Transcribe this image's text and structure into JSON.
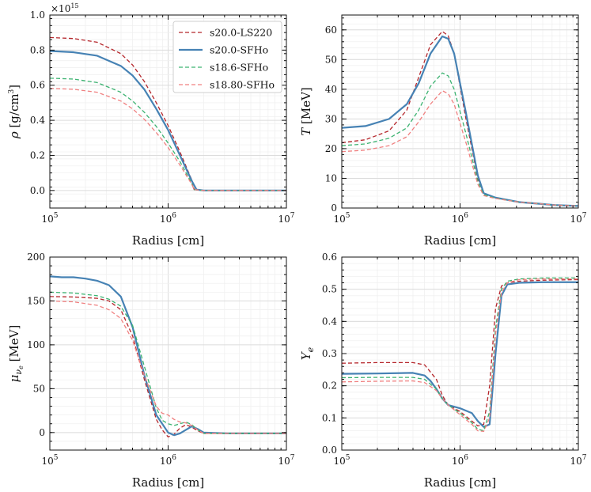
{
  "colors": {
    "s20_LS220": "#b5262b",
    "s20_SFHo": "#4682b4",
    "s18_6_SFHo": "#3cb371",
    "s18_80_SFHo": "#f08080"
  },
  "legend": {
    "position": "top-right",
    "panel": 0
  },
  "chart_data": [
    {
      "type": "line",
      "xlabel": "Radius [cm]",
      "ylabel": "ρ [g/cm³]",
      "ylabel_parts": {
        "symbol": "ρ",
        "unit": "[g/cm",
        "exp": "3",
        "close": "]"
      },
      "xscale": "log",
      "xlim": [
        100000,
        10000000
      ],
      "xticks": [
        "10^5",
        "10^6",
        "10^7"
      ],
      "ylim": [
        -0.1,
        1.0
      ],
      "yticks": [
        0.0,
        0.2,
        0.4,
        0.6,
        0.8,
        1.0
      ],
      "y_multiplier": "×10^15",
      "grid": true,
      "series": [
        {
          "name": "s20.0-LS220",
          "style": "dashed",
          "key": "s20_LS220",
          "x": [
            5,
            5.2,
            5.4,
            5.6,
            5.7,
            5.8,
            5.9,
            6.0,
            6.1,
            6.2,
            6.22,
            6.3,
            6.5,
            7
          ],
          "y": [
            0.872,
            0.866,
            0.845,
            0.78,
            0.715,
            0.62,
            0.5,
            0.37,
            0.22,
            0.06,
            0.005,
            0.0,
            0.0,
            0.0
          ]
        },
        {
          "name": "s20.0-SFHo",
          "style": "solid",
          "key": "s20_SFHo",
          "x": [
            5,
            5.2,
            5.4,
            5.6,
            5.7,
            5.8,
            5.9,
            6.0,
            6.1,
            6.2,
            6.24,
            6.3,
            6.5,
            7
          ],
          "y": [
            0.795,
            0.788,
            0.768,
            0.71,
            0.655,
            0.575,
            0.465,
            0.345,
            0.2,
            0.055,
            0.005,
            0.0,
            0.0,
            0.0
          ]
        },
        {
          "name": "s18.6-SFHo",
          "style": "dashed",
          "key": "s18_6_SFHo",
          "x": [
            5,
            5.2,
            5.4,
            5.6,
            5.7,
            5.8,
            5.9,
            6.0,
            6.1,
            6.2,
            6.22,
            6.3,
            6.5,
            7
          ],
          "y": [
            0.64,
            0.635,
            0.615,
            0.56,
            0.51,
            0.445,
            0.365,
            0.27,
            0.165,
            0.04,
            0.005,
            0.0,
            0.0,
            0.0
          ]
        },
        {
          "name": "s18.80-SFHo",
          "style": "dashed",
          "key": "s18_80_SFHo",
          "x": [
            5,
            5.2,
            5.4,
            5.6,
            5.7,
            5.8,
            5.9,
            6.0,
            6.1,
            6.2,
            6.22,
            6.3,
            6.5,
            7
          ],
          "y": [
            0.582,
            0.577,
            0.56,
            0.51,
            0.465,
            0.405,
            0.33,
            0.245,
            0.145,
            0.035,
            0.005,
            0.0,
            0.0,
            0.0
          ]
        }
      ]
    },
    {
      "type": "line",
      "xlabel": "Radius [cm]",
      "ylabel": "T [MeV]",
      "ylabel_parts": {
        "symbol": "T",
        "unit": "[MeV]"
      },
      "xscale": "log",
      "xlim": [
        100000,
        10000000
      ],
      "xticks": [
        "10^5",
        "10^6",
        "10^7"
      ],
      "ylim": [
        0,
        65
      ],
      "yticks": [
        0,
        10,
        20,
        30,
        40,
        50,
        60
      ],
      "grid": true,
      "series": [
        {
          "name": "s20.0-LS220",
          "style": "dashed",
          "key": "s20_LS220",
          "x": [
            5,
            5.2,
            5.4,
            5.55,
            5.65,
            5.75,
            5.85,
            5.9,
            5.95,
            6.05,
            6.15,
            6.2,
            6.3,
            6.5,
            6.8,
            7
          ],
          "y": [
            22,
            23,
            26,
            33,
            44,
            55,
            59.5,
            58,
            52,
            30,
            10,
            5,
            3.5,
            2,
            1,
            0.7
          ]
        },
        {
          "name": "s20.0-SFHo",
          "style": "solid",
          "key": "s20_SFHo",
          "x": [
            5,
            5.2,
            5.4,
            5.55,
            5.65,
            5.75,
            5.85,
            5.9,
            5.95,
            6.05,
            6.15,
            6.2,
            6.3,
            6.5,
            6.8,
            7
          ],
          "y": [
            27,
            27.6,
            30,
            35,
            42,
            52,
            57.8,
            57,
            52,
            32,
            11,
            5,
            3.5,
            2,
            1,
            0.7
          ]
        },
        {
          "name": "s18.6-SFHo",
          "style": "dashed",
          "key": "s18_6_SFHo",
          "x": [
            5,
            5.2,
            5.4,
            5.55,
            5.65,
            5.75,
            5.85,
            5.9,
            5.95,
            6.05,
            6.15,
            6.2,
            6.3,
            6.5,
            6.8,
            7
          ],
          "y": [
            21,
            21.6,
            23.5,
            27,
            33,
            41,
            45.5,
            44.5,
            40,
            25,
            9,
            4.5,
            3.3,
            2,
            1,
            0.7
          ]
        },
        {
          "name": "s18.80-SFHo",
          "style": "dashed",
          "key": "s18_80_SFHo",
          "x": [
            5,
            5.2,
            5.4,
            5.55,
            5.65,
            5.75,
            5.85,
            5.9,
            5.95,
            6.05,
            6.15,
            6.2,
            6.3,
            6.5,
            6.8,
            7
          ],
          "y": [
            19,
            19.5,
            21,
            24,
            29,
            35,
            39.5,
            38.5,
            35,
            22,
            8,
            4.2,
            3.2,
            2,
            1,
            0.7
          ]
        }
      ]
    },
    {
      "type": "line",
      "xlabel": "Radius [cm]",
      "ylabel": "μ_νe [MeV]",
      "ylabel_parts": {
        "symbol": "μ",
        "sub": "ν",
        "subsub": "e",
        "unit": "[MeV]"
      },
      "xscale": "log",
      "xlim": [
        100000,
        10000000
      ],
      "xticks": [
        "10^5",
        "10^6",
        "10^7"
      ],
      "ylim": [
        -20,
        200
      ],
      "yticks": [
        0,
        50,
        100,
        150,
        200
      ],
      "grid": true,
      "series": [
        {
          "name": "s20.0-LS220",
          "style": "dashed",
          "key": "s20_LS220",
          "x": [
            5,
            5.2,
            5.4,
            5.5,
            5.6,
            5.7,
            5.8,
            5.9,
            5.95,
            6.0,
            6.05,
            6.1,
            6.15,
            6.2,
            6.25,
            6.3,
            6.5,
            7
          ],
          "y": [
            155,
            154.5,
            153,
            150,
            140,
            110,
            60,
            15,
            3,
            -5,
            -2,
            5,
            9,
            6,
            2,
            -1,
            -1,
            -1
          ]
        },
        {
          "name": "s20.0-SFHo",
          "style": "solid",
          "key": "s20_SFHo",
          "x": [
            5,
            5.1,
            5.2,
            5.3,
            5.4,
            5.5,
            5.6,
            5.7,
            5.8,
            5.9,
            6.0,
            6.05,
            6.1,
            6.15,
            6.2,
            6.25,
            6.3,
            6.5,
            7
          ],
          "y": [
            178,
            177,
            177,
            175.5,
            173,
            168,
            155,
            120,
            65,
            20,
            0,
            -3,
            -1,
            3,
            7,
            4,
            0,
            -1,
            -1
          ]
        },
        {
          "name": "s18.6-SFHo",
          "style": "dashed",
          "key": "s18_6_SFHo",
          "x": [
            5,
            5.2,
            5.4,
            5.5,
            5.6,
            5.7,
            5.8,
            5.9,
            5.95,
            6.0,
            6.05,
            6.1,
            6.15,
            6.2,
            6.25,
            6.3,
            6.5,
            7
          ],
          "y": [
            160,
            159,
            156,
            152,
            144,
            122,
            75,
            28,
            14,
            10,
            8,
            10,
            12,
            9,
            3,
            -1,
            -1,
            -1
          ]
        },
        {
          "name": "s18.80-SFHo",
          "style": "dashed",
          "key": "s18_80_SFHo",
          "x": [
            5,
            5.2,
            5.4,
            5.5,
            5.6,
            5.7,
            5.8,
            5.9,
            5.95,
            6.0,
            6.05,
            6.1,
            6.15,
            6.2,
            6.25,
            6.3,
            6.5,
            7
          ],
          "y": [
            150,
            149,
            145,
            140,
            130,
            105,
            65,
            30,
            22,
            20,
            15,
            12,
            11,
            8,
            3,
            -1,
            -1,
            -1
          ]
        }
      ]
    },
    {
      "type": "line",
      "xlabel": "Radius [cm]",
      "ylabel": "Y_e",
      "ylabel_parts": {
        "symbol": "Y",
        "sub": "e"
      },
      "xscale": "log",
      "xlim": [
        100000,
        10000000
      ],
      "xticks": [
        "10^5",
        "10^6",
        "10^7"
      ],
      "ylim": [
        0.0,
        0.6
      ],
      "yticks": [
        0.0,
        0.1,
        0.2,
        0.3,
        0.4,
        0.5,
        0.6
      ],
      "grid": true,
      "series": [
        {
          "name": "s20.0-LS220",
          "style": "dashed",
          "key": "s20_LS220",
          "x": [
            5,
            5.3,
            5.6,
            5.7,
            5.8,
            5.85,
            5.9,
            6.0,
            6.1,
            6.15,
            6.2,
            6.25,
            6.3,
            6.35,
            6.4,
            6.5,
            6.7,
            7
          ],
          "y": [
            0.27,
            0.272,
            0.272,
            0.265,
            0.22,
            0.17,
            0.14,
            0.12,
            0.09,
            0.075,
            0.08,
            0.2,
            0.44,
            0.51,
            0.52,
            0.525,
            0.528,
            0.53
          ]
        },
        {
          "name": "s20.0-SFHo",
          "style": "solid",
          "key": "s20_SFHo",
          "x": [
            5,
            5.3,
            5.6,
            5.7,
            5.75,
            5.8,
            5.85,
            5.9,
            6.0,
            6.1,
            6.15,
            6.2,
            6.25,
            6.3,
            6.35,
            6.4,
            6.5,
            6.7,
            7
          ],
          "y": [
            0.237,
            0.238,
            0.24,
            0.232,
            0.215,
            0.19,
            0.16,
            0.14,
            0.13,
            0.115,
            0.09,
            0.072,
            0.08,
            0.3,
            0.48,
            0.515,
            0.52,
            0.522,
            0.522
          ]
        },
        {
          "name": "s18.6-SFHo",
          "style": "dashed",
          "key": "s18_6_SFHo",
          "x": [
            5,
            5.3,
            5.6,
            5.7,
            5.8,
            5.85,
            5.9,
            6.0,
            6.1,
            6.15,
            6.2,
            6.25,
            6.3,
            6.35,
            6.4,
            6.5,
            6.7,
            7
          ],
          "y": [
            0.225,
            0.226,
            0.226,
            0.22,
            0.19,
            0.16,
            0.14,
            0.115,
            0.085,
            0.065,
            0.06,
            0.12,
            0.38,
            0.5,
            0.525,
            0.532,
            0.535,
            0.535
          ]
        },
        {
          "name": "s18.80-SFHo",
          "style": "dashed",
          "key": "s18_80_SFHo",
          "x": [
            5,
            5.3,
            5.6,
            5.7,
            5.8,
            5.85,
            5.9,
            6.0,
            6.1,
            6.15,
            6.2,
            6.25,
            6.3,
            6.35,
            6.4,
            6.5,
            6.7,
            7
          ],
          "y": [
            0.212,
            0.214,
            0.215,
            0.21,
            0.185,
            0.16,
            0.14,
            0.11,
            0.08,
            0.06,
            0.058,
            0.1,
            0.36,
            0.49,
            0.52,
            0.53,
            0.532,
            0.532
          ]
        }
      ]
    }
  ]
}
